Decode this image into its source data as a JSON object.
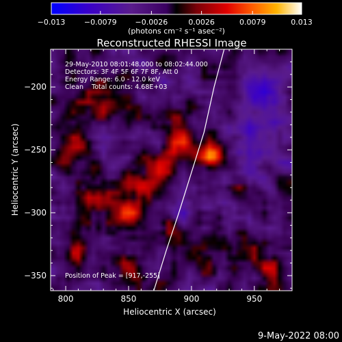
{
  "chart_data": {
    "type": "heatmap",
    "title": "Reconstructed RHESSI Image",
    "xlabel": "Heliocentric X (arcsec)",
    "ylabel": "Heliocentric Y (arcsec)",
    "xlim": [
      788,
      980
    ],
    "ylim": [
      -362,
      -170
    ],
    "xticks": [
      800,
      850,
      900,
      950
    ],
    "xtick_labels": [
      "800",
      "850",
      "900",
      "950"
    ],
    "yticks": [
      -200,
      -250,
      -300,
      -350
    ],
    "ytick_labels": [
      "−200",
      "−250",
      "−300",
      "−350"
    ],
    "colorbar": {
      "range": [
        -0.013,
        0.013
      ],
      "ticks": [
        -0.013,
        -0.0079,
        -0.0026,
        0.0026,
        0.0079,
        0.013
      ],
      "tick_labels": [
        "−0.013",
        "−0.0079",
        "−0.0026",
        "0.0026",
        "0.0079",
        "0.013"
      ],
      "units": "(photons cm⁻² s⁻¹ asec⁻²)"
    },
    "annotations": [
      "29-May-2010 08:01:48.000 to 08:02:44.000",
      "Detectors: 3F 4F 5F 6F 7F 8F, Att 0",
      "Energy Range: 6.0 - 12.0 keV",
      "Clean    Total counts: 4.68E+03"
    ],
    "peak_label": "Position of Peak = [917,-255]",
    "peak": [
      917,
      -255
    ],
    "limb_curve": [
      [
        870,
        -362
      ],
      [
        880,
        -330
      ],
      [
        890,
        -300
      ],
      [
        900,
        -268
      ],
      [
        910,
        -236
      ],
      [
        918,
        -200
      ],
      [
        926,
        -170
      ]
    ],
    "sources": [
      {
        "x": 917,
        "y": -255,
        "sx": 6,
        "sy": 6,
        "amp": 0.013
      },
      {
        "x": 893,
        "y": -242,
        "sx": 9,
        "sy": 10,
        "amp": 0.0065
      },
      {
        "x": 875,
        "y": -270,
        "sx": 10,
        "sy": 12,
        "amp": 0.0045
      },
      {
        "x": 850,
        "y": -300,
        "sx": 8,
        "sy": 7,
        "amp": 0.007
      },
      {
        "x": 860,
        "y": -278,
        "sx": 6,
        "sy": 6,
        "amp": 0.0055
      },
      {
        "x": 830,
        "y": -212,
        "sx": 15,
        "sy": 10,
        "amp": 0.0045
      },
      {
        "x": 805,
        "y": -250,
        "sx": 8,
        "sy": 12,
        "amp": 0.004
      },
      {
        "x": 810,
        "y": -330,
        "sx": 6,
        "sy": 8,
        "amp": 0.0055
      },
      {
        "x": 830,
        "y": -290,
        "sx": 12,
        "sy": 12,
        "amp": 0.0035
      },
      {
        "x": 883,
        "y": -312,
        "sx": 6,
        "sy": 6,
        "amp": 0.0045
      },
      {
        "x": 905,
        "y": -330,
        "sx": 10,
        "sy": 10,
        "amp": 0.004
      },
      {
        "x": 945,
        "y": -332,
        "sx": 6,
        "sy": 6,
        "amp": 0.0045
      },
      {
        "x": 962,
        "y": -345,
        "sx": 6,
        "sy": 6,
        "amp": 0.004
      },
      {
        "x": 850,
        "y": -345,
        "sx": 10,
        "sy": 8,
        "amp": 0.0035
      },
      {
        "x": 938,
        "y": -282,
        "sx": 5,
        "sy": 5,
        "amp": 0.0035
      },
      {
        "x": 950,
        "y": -240,
        "sx": 12,
        "sy": 20,
        "amp": -0.005
      },
      {
        "x": 955,
        "y": -200,
        "sx": 14,
        "sy": 12,
        "amp": -0.005
      },
      {
        "x": 890,
        "y": -295,
        "sx": 10,
        "sy": 10,
        "amp": -0.003
      }
    ]
  },
  "footer": {
    "timestamp": "9-May-2022 08:00"
  }
}
